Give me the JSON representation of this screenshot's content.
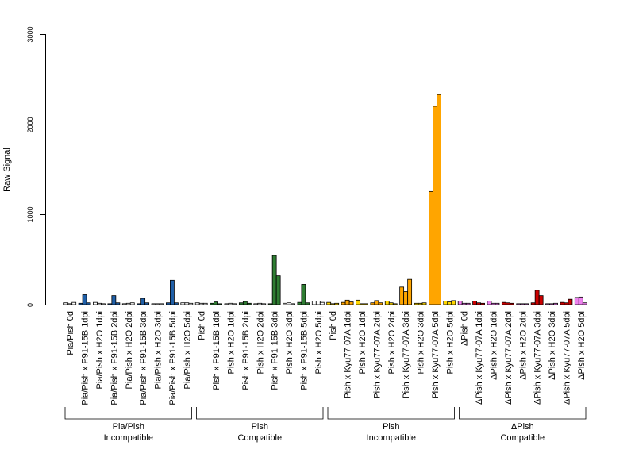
{
  "chart_data": {
    "type": "bar",
    "ylabel": "Raw Signal",
    "xlabel": "",
    "title": "",
    "ylim": [
      0,
      3000
    ],
    "yticks": [
      0,
      1000,
      2000,
      3000
    ],
    "grid": false,
    "bars_per_group": 3,
    "palette": {
      "pia": [
        "#ffffff",
        "#1f5fa8"
      ],
      "pish_compat": [
        "#ffffff",
        "#2e7d32"
      ],
      "pish_incompat": [
        "#ffd700",
        "#ffa500"
      ],
      "dpish": [
        "#ee82ee",
        "#cc0000"
      ]
    },
    "categories": [
      {
        "label": "Pia/Pish 0d",
        "color": "#ffffff",
        "values": [
          20,
          10,
          25
        ]
      },
      {
        "label": "Pia/Pish x P91-15B 1dpi",
        "color": "#1f5fa8",
        "values": [
          15,
          110,
          20
        ]
      },
      {
        "label": "Pia/Pish x H2O 1dpi",
        "color": "#ffffff",
        "values": [
          25,
          15,
          10
        ]
      },
      {
        "label": "Pia/Pish x P91-15B 2dpi",
        "color": "#1f5fa8",
        "values": [
          10,
          100,
          20
        ]
      },
      {
        "label": "Pia/Pish x H2O 2dpi",
        "color": "#ffffff",
        "values": [
          10,
          15,
          20
        ]
      },
      {
        "label": "Pia/Pish x P91-15B 3dpi",
        "color": "#1f5fa8",
        "values": [
          10,
          70,
          20
        ]
      },
      {
        "label": "Pia/Pish x H2O 3dpi",
        "color": "#ffffff",
        "values": [
          10,
          10,
          10
        ]
      },
      {
        "label": "Pia/Pish x P91-15B 5dpi",
        "color": "#1f5fa8",
        "values": [
          20,
          270,
          20
        ]
      },
      {
        "label": "Pia/Pish x H2O 5dpi",
        "color": "#ffffff",
        "values": [
          20,
          20,
          15
        ]
      },
      {
        "label": "Pish 0d",
        "color": "#ffffff",
        "values": [
          20,
          15,
          15
        ]
      },
      {
        "label": "Pish x P91-15B 1dpi",
        "color": "#2e7d32",
        "values": [
          15,
          30,
          10
        ]
      },
      {
        "label": "Pish x H2O 1dpi",
        "color": "#ffffff",
        "values": [
          10,
          15,
          10
        ]
      },
      {
        "label": "Pish x P91-15B 2dpi",
        "color": "#2e7d32",
        "values": [
          20,
          35,
          15
        ]
      },
      {
        "label": "Pish x H2O 2dpi",
        "color": "#ffffff",
        "values": [
          10,
          15,
          10
        ]
      },
      {
        "label": "Pish x P91-15B 3dpi",
        "color": "#2e7d32",
        "values": [
          10,
          545,
          320
        ]
      },
      {
        "label": "Pish x H2O 3dpi",
        "color": "#ffffff",
        "values": [
          15,
          20,
          10
        ]
      },
      {
        "label": "Pish x P91-15B 5dpi",
        "color": "#2e7d32",
        "values": [
          25,
          225,
          20
        ]
      },
      {
        "label": "Pish x H2O 5dpi",
        "color": "#ffffff",
        "values": [
          40,
          40,
          25
        ]
      },
      {
        "label": "Pish 0d",
        "color": "#ffd700",
        "values": [
          25,
          10,
          15
        ]
      },
      {
        "label": "Pish x Kyu77-07A 1dpi",
        "color": "#ffa500",
        "values": [
          25,
          50,
          30
        ]
      },
      {
        "label": "Pish x H2O 1dpi",
        "color": "#ffd700",
        "values": [
          50,
          10,
          10
        ]
      },
      {
        "label": "Pish x Kyu77-07A 2dpi",
        "color": "#ffa500",
        "values": [
          20,
          45,
          20
        ]
      },
      {
        "label": "Pish x H2O 2dpi",
        "color": "#ffd700",
        "values": [
          40,
          20,
          10
        ]
      },
      {
        "label": "Pish x Kyu77-07A 3dpi",
        "color": "#ffa500",
        "values": [
          195,
          145,
          280
        ]
      },
      {
        "label": "Pish x H2O 3dpi",
        "color": "#ffd700",
        "values": [
          15,
          15,
          20
        ]
      },
      {
        "label": "Pish x Kyu77-07A 5dpi",
        "color": "#ffa500",
        "values": [
          1255,
          2200,
          2330
        ]
      },
      {
        "label": "Pish x H2O 5dpi",
        "color": "#ffd700",
        "values": [
          40,
          30,
          45
        ]
      },
      {
        "label": "ΔPish 0d",
        "color": "#ee82ee",
        "values": [
          40,
          15,
          15
        ]
      },
      {
        "label": "ΔPish x Kyu77-07A 1dpi",
        "color": "#cc0000",
        "values": [
          40,
          20,
          15
        ]
      },
      {
        "label": "ΔPish x H2O 1dpi",
        "color": "#ee82ee",
        "values": [
          40,
          15,
          15
        ]
      },
      {
        "label": "ΔPish x Kyu77-07A 2dpi",
        "color": "#cc0000",
        "values": [
          25,
          20,
          15
        ]
      },
      {
        "label": "ΔPish x H2O 2dpi",
        "color": "#ee82ee",
        "values": [
          10,
          10,
          10
        ]
      },
      {
        "label": "ΔPish x Kyu77-07A 3dpi",
        "color": "#cc0000",
        "values": [
          20,
          160,
          100
        ]
      },
      {
        "label": "ΔPish x H2O 3dpi",
        "color": "#ee82ee",
        "values": [
          10,
          10,
          15
        ]
      },
      {
        "label": "ΔPish x Kyu77-07A 5dpi",
        "color": "#cc0000",
        "values": [
          25,
          20,
          60
        ]
      },
      {
        "label": "ΔPish x H2O 5dpi",
        "color": "#ee82ee",
        "values": [
          80,
          85,
          20
        ]
      }
    ],
    "groups": [
      {
        "line1": "Pia/Pish",
        "line2": "Incompatible",
        "start": 0,
        "end": 8
      },
      {
        "line1": "Pish",
        "line2": "Compatible",
        "start": 9,
        "end": 17
      },
      {
        "line1": "Pish",
        "line2": "Incompatible",
        "start": 18,
        "end": 26
      },
      {
        "line1": "ΔPish",
        "line2": "Compatible",
        "start": 27,
        "end": 35
      }
    ]
  }
}
